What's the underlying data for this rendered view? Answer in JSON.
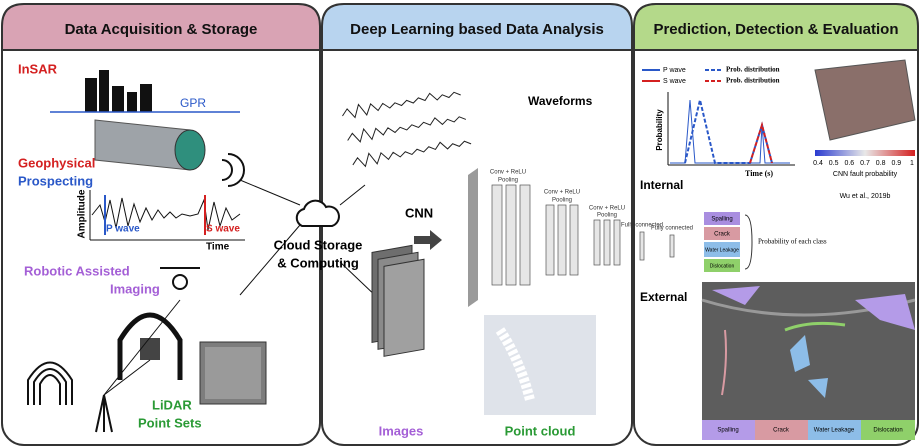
{
  "panels": [
    {
      "title": "Data Acquisition & Storage",
      "labels": {
        "insar": "InSAR",
        "gpr": "GPR",
        "geophysical": "Geophysical",
        "prospecting": "Prospecting",
        "amplitude": "Amplitude",
        "p_wave": "P wave",
        "s_wave": "S wave",
        "time": "Time",
        "robotic": "Robotic Assisted",
        "imaging": "Imaging",
        "lidar": "LiDAR",
        "point_sets": "Point Sets"
      }
    },
    {
      "title": "Deep Learning based Data Analysis",
      "labels": {
        "waveforms": "Waveforms",
        "cnn": "CNN",
        "conv1": "Conv + ReLU",
        "pool1": "Pooling",
        "conv2": "Conv + ReLU",
        "pool2": "Pooling",
        "conv3": "Conv + ReLU",
        "pool3": "Pooling",
        "fc1": "Fully connected",
        "fc2": "Fully connected",
        "probability": "Probability of each class",
        "images": "Images",
        "point_cloud": "Point cloud"
      },
      "classes": [
        "Spalling",
        "Crack",
        "Water Leakage",
        "Dislocation"
      ]
    },
    {
      "title": "Prediction, Detection & Evaluation",
      "legend": [
        "P wave",
        "S wave",
        "Prob. distribution",
        "Prob. distribution"
      ],
      "labels": {
        "probability": "Probability",
        "time": "Time (s)",
        "colorbar_title": "CNN fault probability",
        "citation": "Wu et al., 2019b",
        "internal": "Internal",
        "external": "External"
      },
      "colorbar_ticks": [
        "0.4",
        "0.5",
        "0.6",
        "0.7",
        "0.8",
        "0.9",
        "1"
      ],
      "classes": [
        "Spalling",
        "Crack",
        "Water Leakage",
        "Dislocation"
      ]
    }
  ],
  "cloud": {
    "line1": "Cloud Storage",
    "line2": "& Computing"
  }
}
